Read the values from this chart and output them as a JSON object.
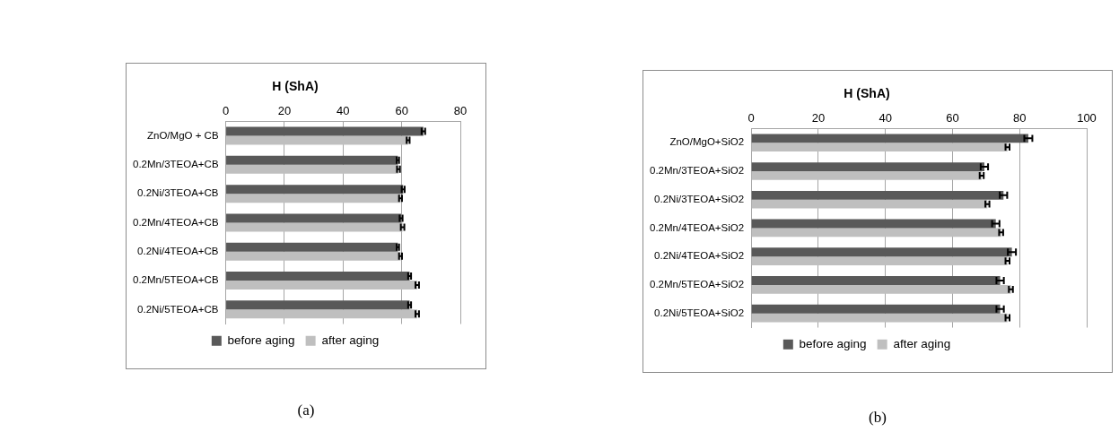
{
  "chart_data": [
    {
      "type": "bar",
      "orientation": "horizontal",
      "title": "H (ShA)",
      "categories": [
        "ZnO/MgO + CB",
        "0.2Mn/3TEOA+CB",
        "0.2Ni/3TEOA+CB",
        "0.2Mn/4TEOA+CB",
        "0.2Ni/4TEOA+CB",
        "0.2Mn/5TEOA+CB",
        "0.2Ni/5TEOA+CB"
      ],
      "series": [
        {
          "name": "before aging",
          "color": "#595959",
          "values": [
            67.4,
            58.7,
            60.5,
            59.8,
            58.7,
            62.7,
            62.7
          ],
          "errors": [
            0.6,
            0.4,
            0.5,
            0.5,
            0.4,
            0.5,
            0.5
          ]
        },
        {
          "name": "after aging",
          "color": "#bfbfbf",
          "values": [
            62.2,
            58.9,
            59.6,
            60.3,
            59.6,
            65.3,
            65.3
          ],
          "errors": [
            0.5,
            0.5,
            0.5,
            0.6,
            0.5,
            0.6,
            0.6
          ]
        }
      ],
      "xlim": [
        0,
        80
      ],
      "xticks": [
        0,
        20,
        40,
        60,
        80
      ],
      "grid": "x",
      "legend": "bottom",
      "annotations": [
        "(a)"
      ]
    },
    {
      "type": "bar",
      "orientation": "horizontal",
      "title": "H (ShA)",
      "categories": [
        "ZnO/MgO+SiO2",
        "0.2Mn/3TEOA+SiO2",
        "0.2Ni/3TEOA+SiO2",
        "0.2Mn/4TEOA+SiO2",
        "0.2Ni/4TEOA+SiO2",
        "0.2Mn/5TEOA+SiO2",
        "0.2Ni/5TEOA+SiO2"
      ],
      "series": [
        {
          "name": "before aging",
          "color": "#595959",
          "values": [
            82.6,
            69.5,
            75.2,
            72.9,
            77.7,
            74.2,
            74.2
          ],
          "errors": [
            1.2,
            1.1,
            1.1,
            1.1,
            1.2,
            1.1,
            1.1
          ]
        },
        {
          "name": "after aging",
          "color": "#bfbfbf",
          "values": [
            76.4,
            68.7,
            70.4,
            74.5,
            76.4,
            77.4,
            76.4
          ],
          "errors": [
            0.6,
            0.6,
            0.6,
            0.6,
            0.6,
            0.6,
            0.6
          ]
        }
      ],
      "xlim": [
        0,
        100
      ],
      "xticks": [
        0,
        20,
        40,
        60,
        80,
        100
      ],
      "grid": "x",
      "legend": "bottom",
      "annotations": [
        "(b)"
      ]
    }
  ]
}
